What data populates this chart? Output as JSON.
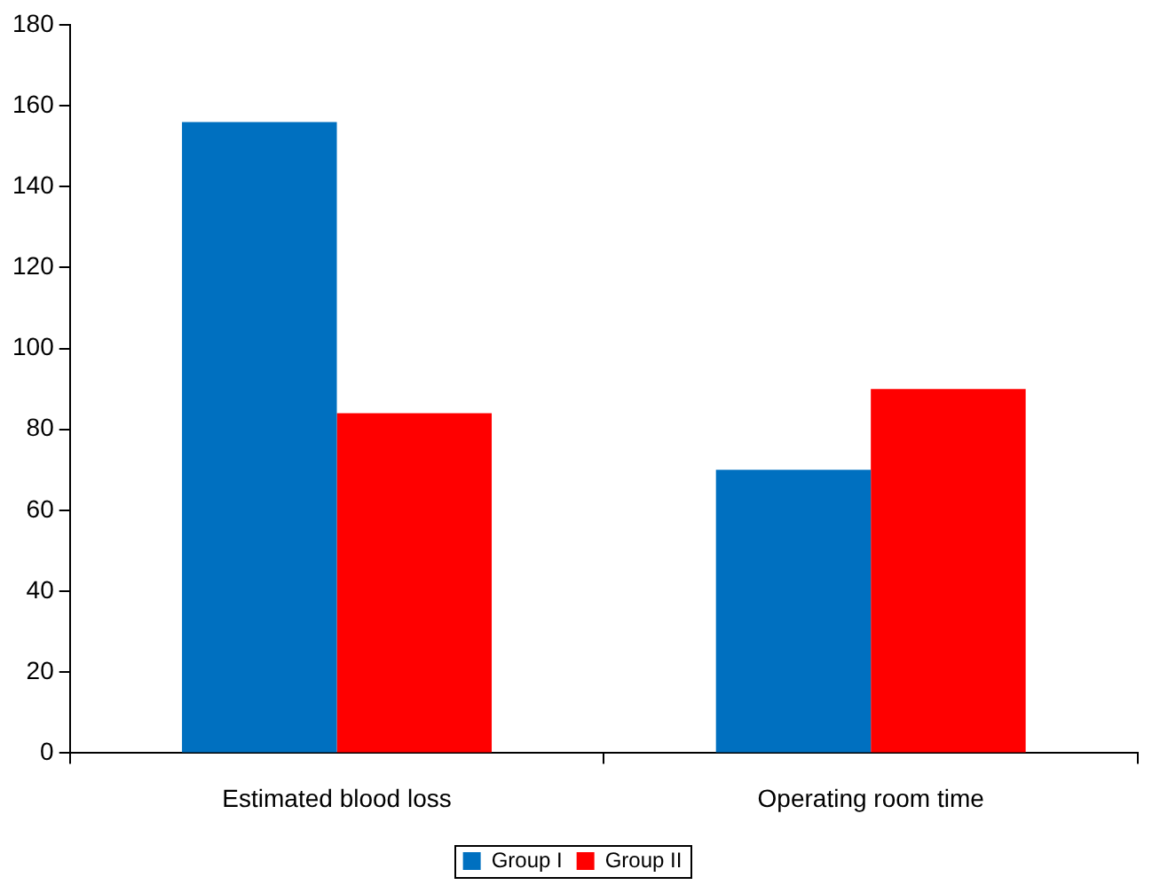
{
  "chart_data": {
    "type": "bar",
    "categories": [
      "Estimated blood loss",
      "Operating room time"
    ],
    "series": [
      {
        "name": "Group I",
        "color": "#0070c0",
        "values": [
          156,
          70
        ]
      },
      {
        "name": "Group II",
        "color": "#ff0000",
        "values": [
          84,
          90
        ]
      }
    ],
    "ylim": [
      0,
      180
    ],
    "yticks": [
      0,
      20,
      40,
      60,
      80,
      100,
      120,
      140,
      160,
      180
    ],
    "grid": false,
    "legend": "bottom"
  }
}
